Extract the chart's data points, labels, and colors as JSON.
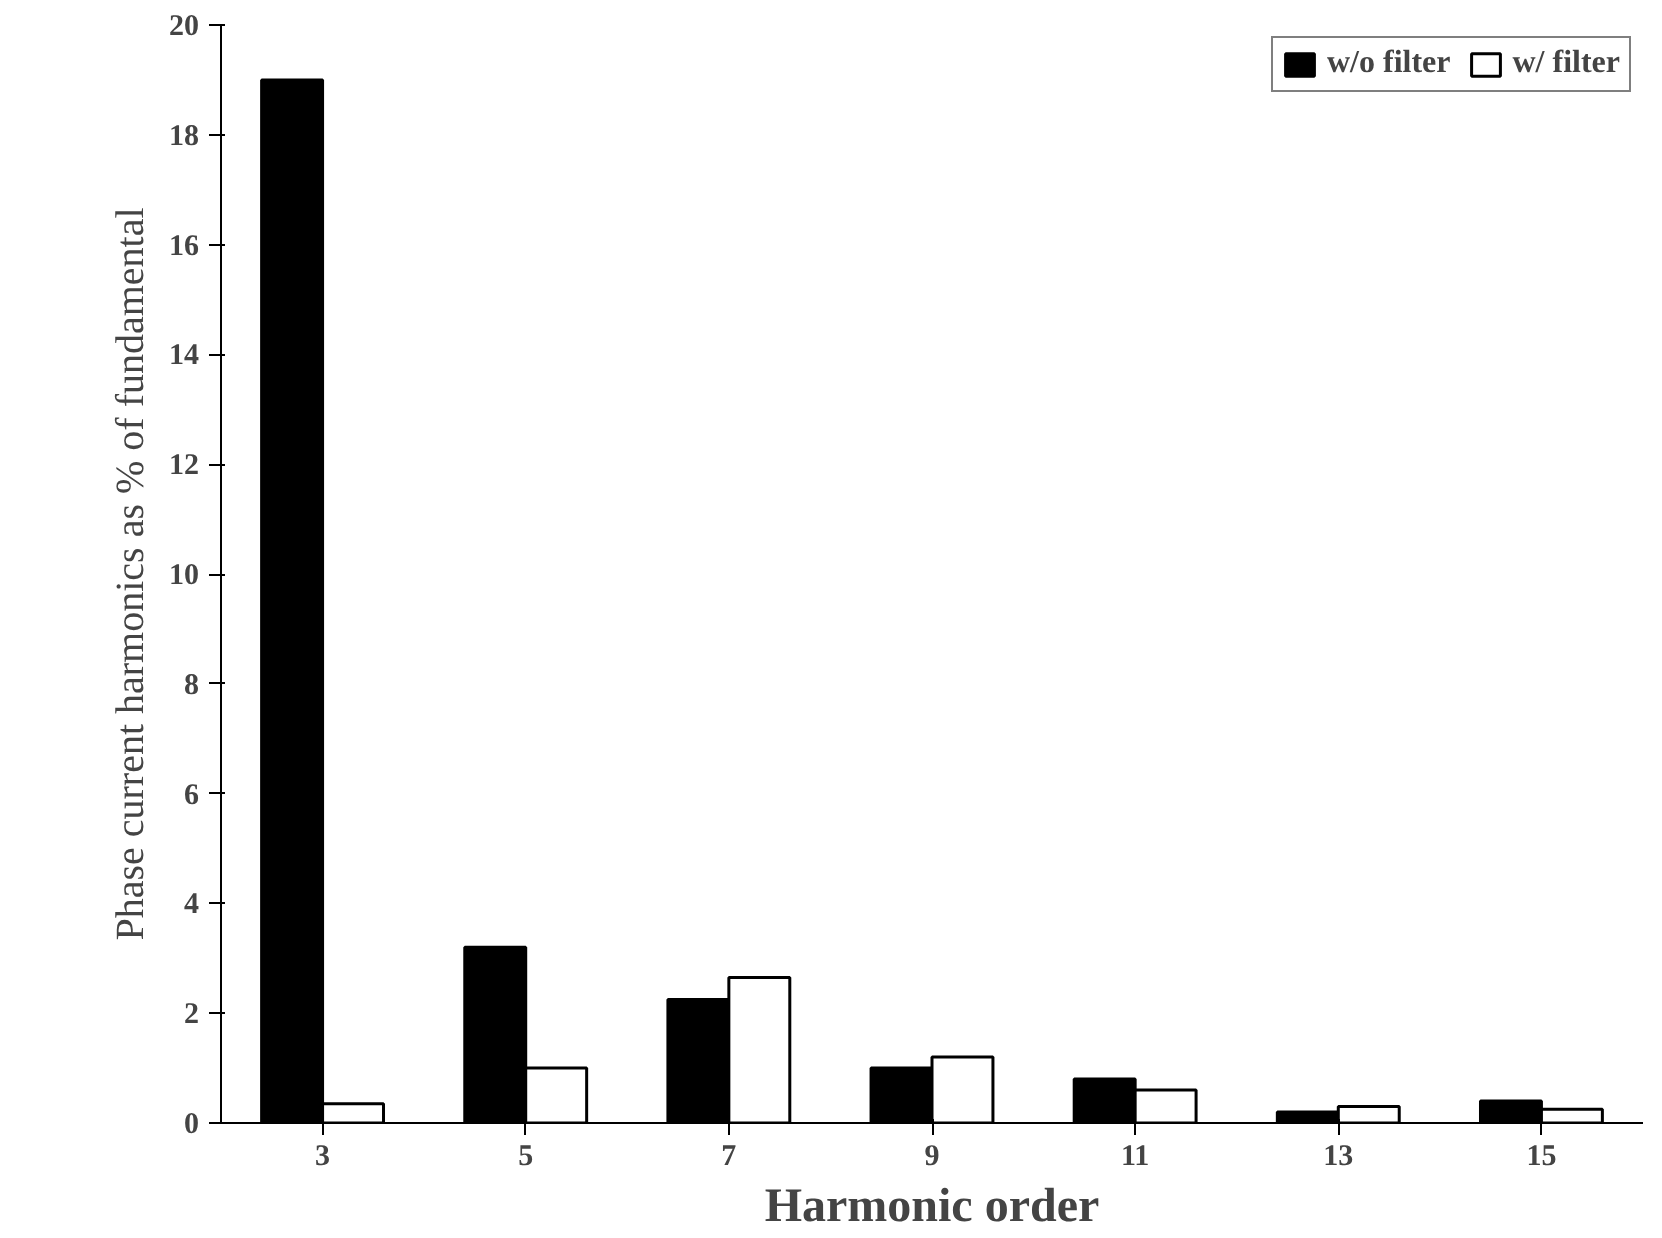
{
  "chart_data": {
    "type": "bar",
    "xlabel": "Harmonic order",
    "ylabel": "Phase current harmonics as % of fundamental",
    "categories": [
      "3",
      "5",
      "7",
      "9",
      "11",
      "13",
      "15"
    ],
    "series": [
      {
        "name": "w/o filter",
        "color": "#000000",
        "values": [
          19.0,
          3.2,
          2.25,
          1.0,
          0.8,
          0.2,
          0.4
        ]
      },
      {
        "name": "w/ filter",
        "color": "#ffffff",
        "values": [
          0.35,
          1.0,
          2.65,
          1.2,
          0.6,
          0.3,
          0.25
        ]
      }
    ],
    "ylim": [
      0,
      20
    ],
    "yticks": [
      0,
      2,
      4,
      6,
      8,
      10,
      12,
      14,
      16,
      18,
      20
    ],
    "grid": false,
    "legend": "top right"
  }
}
